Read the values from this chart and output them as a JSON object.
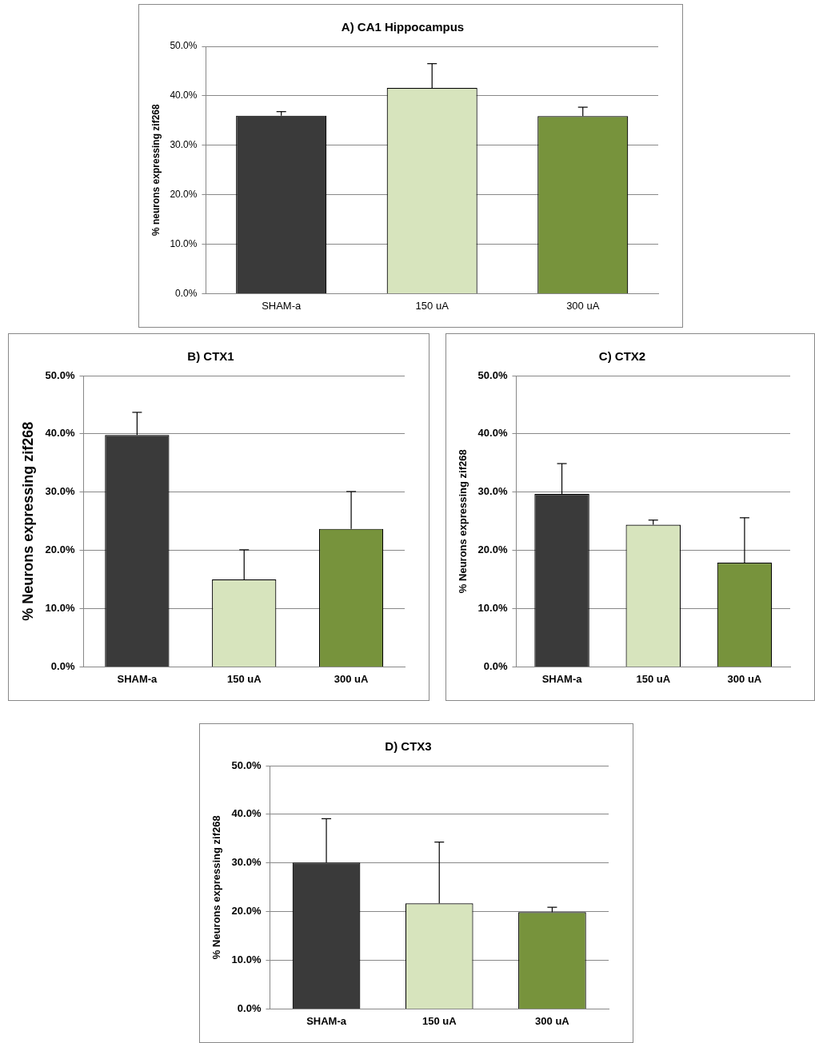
{
  "chart_data": [
    {
      "type": "bar",
      "title": "A) CA1 Hippocampus",
      "ylabel": "% neurons expressing zif268",
      "categories": [
        "SHAM-a",
        "150 uA",
        "300 uA"
      ],
      "values": [
        36.0,
        41.6,
        35.9
      ],
      "colors": [
        "#3a3a3a",
        "#d7e4bd",
        "#77933c"
      ],
      "errors": [
        [
          36.0,
          36.8
        ],
        [
          41.6,
          46.5
        ],
        [
          35.9,
          37.7
        ]
      ],
      "ylim": [
        0,
        50
      ],
      "yticks": [
        {
          "value": 0,
          "label": "0.0%"
        },
        {
          "value": 10,
          "label": "10.0%"
        },
        {
          "value": 20,
          "label": "20.0%"
        },
        {
          "value": 30,
          "label": "30.0%"
        },
        {
          "value": 40,
          "label": "40.0%"
        },
        {
          "value": 50,
          "label": "50.0%"
        }
      ],
      "grid": "y",
      "legend": false
    },
    {
      "type": "bar",
      "title": "B) CTX1",
      "ylabel": "% Neurons expressing zif268",
      "categories": [
        "SHAM-a",
        "150 uA",
        "300 uA"
      ],
      "values": [
        39.8,
        15.0,
        23.7
      ],
      "colors": [
        "#3a3a3a",
        "#d7e4bd",
        "#77933c"
      ],
      "errors": [
        [
          39.8,
          43.7
        ],
        [
          15.0,
          20.1
        ],
        [
          23.7,
          30.1
        ]
      ],
      "ylim": [
        0,
        50
      ],
      "yticks": [
        {
          "value": 0,
          "label": "0.0%"
        },
        {
          "value": 10,
          "label": "10.0%"
        },
        {
          "value": 20,
          "label": "20.0%"
        },
        {
          "value": 30,
          "label": "30.0%"
        },
        {
          "value": 40,
          "label": "40.0%"
        },
        {
          "value": 50,
          "label": "50.0%"
        }
      ],
      "grid": "y",
      "legend": false
    },
    {
      "type": "bar",
      "title": "C) CTX2",
      "ylabel": "% Neurons expressing zif268",
      "categories": [
        "SHAM-a",
        "150 uA",
        "300 uA"
      ],
      "values": [
        29.7,
        24.4,
        17.9
      ],
      "colors": [
        "#3a3a3a",
        "#d7e4bd",
        "#77933c"
      ],
      "errors": [
        [
          29.7,
          34.9
        ],
        [
          24.4,
          25.2
        ],
        [
          17.9,
          25.6
        ]
      ],
      "ylim": [
        0,
        50
      ],
      "yticks": [
        {
          "value": 0,
          "label": "0.0%"
        },
        {
          "value": 10,
          "label": "10.0%"
        },
        {
          "value": 20,
          "label": "20.0%"
        },
        {
          "value": 30,
          "label": "30.0%"
        },
        {
          "value": 40,
          "label": "40.0%"
        },
        {
          "value": 50,
          "label": "50.0%"
        }
      ],
      "grid": "y",
      "legend": false
    },
    {
      "type": "bar",
      "title": "D) CTX3",
      "ylabel": "% Neurons expressing zif268",
      "categories": [
        "SHAM-a",
        "150 uA",
        "300 uA"
      ],
      "values": [
        30.1,
        21.7,
        19.9
      ],
      "colors": [
        "#3a3a3a",
        "#d7e4bd",
        "#77933c"
      ],
      "errors": [
        [
          30.1,
          39.1
        ],
        [
          21.7,
          34.3
        ],
        [
          19.9,
          20.9
        ]
      ],
      "ylim": [
        0,
        50
      ],
      "yticks": [
        {
          "value": 0,
          "label": "0.0%"
        },
        {
          "value": 10,
          "label": "10.0%"
        },
        {
          "value": 20,
          "label": "20.0%"
        },
        {
          "value": 30,
          "label": "30.0%"
        },
        {
          "value": 40,
          "label": "40.0%"
        },
        {
          "value": 50,
          "label": "50.0%"
        }
      ],
      "grid": "y",
      "legend": false
    }
  ]
}
